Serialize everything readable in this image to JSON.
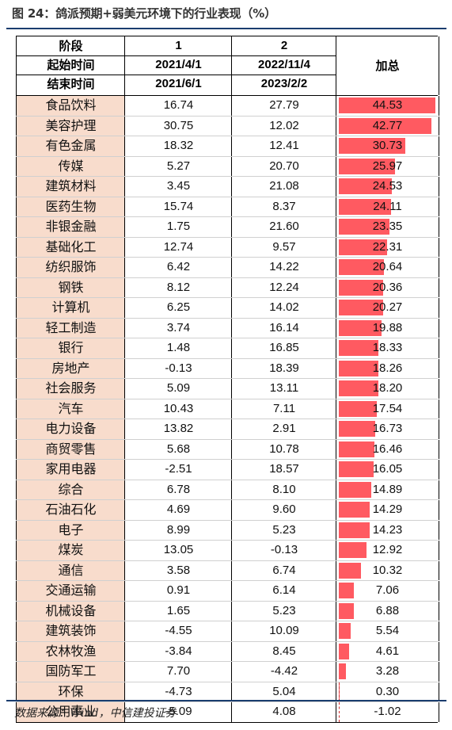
{
  "title": "图 24：鸽派预期+弱美元环境下的行业表现（%）",
  "source": "数据来源：Wind，中信建投证券",
  "header": {
    "row1_label": "阶段",
    "row2_label": "起始时间",
    "row3_label": "结束时间",
    "col1": {
      "stage": "1",
      "start": "2021/4/1",
      "end": "2021/6/1"
    },
    "col2": {
      "stage": "2",
      "start": "2022/11/4",
      "end": "2023/2/2"
    },
    "sum_label": "加总"
  },
  "colors": {
    "name_bg": "#f8dccc",
    "bar": "#ff5a61",
    "rule": "#1a3d6e"
  },
  "rows": [
    {
      "name": "食品饮料",
      "p1": "16.74",
      "p2": "27.79",
      "sum": "44.53",
      "sum_value": 44.53
    },
    {
      "name": "美容护理",
      "p1": "30.75",
      "p2": "12.02",
      "sum": "42.77",
      "sum_value": 42.77
    },
    {
      "name": "有色金属",
      "p1": "18.32",
      "p2": "12.41",
      "sum": "30.73",
      "sum_value": 30.73
    },
    {
      "name": "传媒",
      "p1": "5.27",
      "p2": "20.70",
      "sum": "25.97",
      "sum_value": 25.97
    },
    {
      "name": "建筑材料",
      "p1": "3.45",
      "p2": "21.08",
      "sum": "24.53",
      "sum_value": 24.53
    },
    {
      "name": "医药生物",
      "p1": "15.74",
      "p2": "8.37",
      "sum": "24.11",
      "sum_value": 24.11
    },
    {
      "name": "非银金融",
      "p1": "1.75",
      "p2": "21.60",
      "sum": "23.35",
      "sum_value": 23.35
    },
    {
      "name": "基础化工",
      "p1": "12.74",
      "p2": "9.57",
      "sum": "22.31",
      "sum_value": 22.31
    },
    {
      "name": "纺织服饰",
      "p1": "6.42",
      "p2": "14.22",
      "sum": "20.64",
      "sum_value": 20.64
    },
    {
      "name": "钢铁",
      "p1": "8.12",
      "p2": "12.24",
      "sum": "20.36",
      "sum_value": 20.36
    },
    {
      "name": "计算机",
      "p1": "6.25",
      "p2": "14.02",
      "sum": "20.27",
      "sum_value": 20.27
    },
    {
      "name": "轻工制造",
      "p1": "3.74",
      "p2": "16.14",
      "sum": "19.88",
      "sum_value": 19.88
    },
    {
      "name": "银行",
      "p1": "1.48",
      "p2": "16.85",
      "sum": "18.33",
      "sum_value": 18.33
    },
    {
      "name": "房地产",
      "p1": "-0.13",
      "p2": "18.39",
      "sum": "18.26",
      "sum_value": 18.26
    },
    {
      "name": "社会服务",
      "p1": "5.09",
      "p2": "13.11",
      "sum": "18.20",
      "sum_value": 18.2
    },
    {
      "name": "汽车",
      "p1": "10.43",
      "p2": "7.11",
      "sum": "17.54",
      "sum_value": 17.54
    },
    {
      "name": "电力设备",
      "p1": "13.82",
      "p2": "2.91",
      "sum": "16.73",
      "sum_value": 16.73
    },
    {
      "name": "商贸零售",
      "p1": "5.68",
      "p2": "10.78",
      "sum": "16.46",
      "sum_value": 16.46
    },
    {
      "name": "家用电器",
      "p1": "-2.51",
      "p2": "18.57",
      "sum": "16.05",
      "sum_value": 16.05
    },
    {
      "name": "综合",
      "p1": "6.78",
      "p2": "8.10",
      "sum": "14.89",
      "sum_value": 14.89
    },
    {
      "name": "石油石化",
      "p1": "4.69",
      "p2": "9.60",
      "sum": "14.29",
      "sum_value": 14.29
    },
    {
      "name": "电子",
      "p1": "8.99",
      "p2": "5.23",
      "sum": "14.23",
      "sum_value": 14.23
    },
    {
      "name": "煤炭",
      "p1": "13.05",
      "p2": "-0.13",
      "sum": "12.92",
      "sum_value": 12.92
    },
    {
      "name": "通信",
      "p1": "3.58",
      "p2": "6.74",
      "sum": "10.32",
      "sum_value": 10.32
    },
    {
      "name": "交通运输",
      "p1": "0.91",
      "p2": "6.14",
      "sum": "7.06",
      "sum_value": 7.06
    },
    {
      "name": "机械设备",
      "p1": "1.65",
      "p2": "5.23",
      "sum": "6.88",
      "sum_value": 6.88
    },
    {
      "name": "建筑装饰",
      "p1": "-4.55",
      "p2": "10.09",
      "sum": "5.54",
      "sum_value": 5.54
    },
    {
      "name": "农林牧渔",
      "p1": "-3.84",
      "p2": "8.45",
      "sum": "4.61",
      "sum_value": 4.61
    },
    {
      "name": "国防军工",
      "p1": "7.70",
      "p2": "-4.42",
      "sum": "3.28",
      "sum_value": 3.28
    },
    {
      "name": "环保",
      "p1": "-4.73",
      "p2": "5.04",
      "sum": "0.30",
      "sum_value": 0.3
    },
    {
      "name": "公用事业",
      "p1": "-5.09",
      "p2": "4.08",
      "sum": "-1.02",
      "sum_value": -1.02
    }
  ]
}
